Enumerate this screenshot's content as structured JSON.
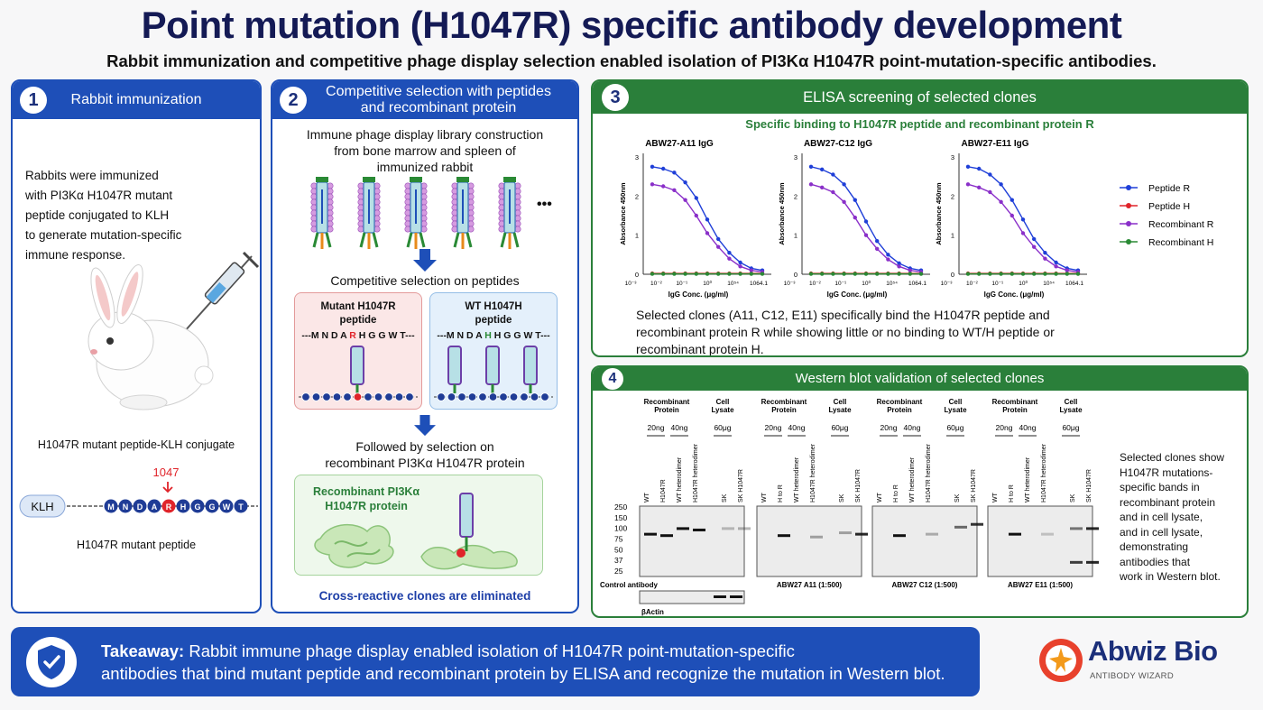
{
  "header": {
    "title": "Point mutation (H1047R) specific antibody development",
    "subtitle": "Rabbit immunization and competitive phage display selection enabled isolation of PI3Kα H1047R point-mutation-specific antibodies."
  },
  "panel1": {
    "num": "1",
    "title": "Rabbit immunization",
    "body": [
      "Rabbits were immunized",
      "with PI3Kα H1047R mutant",
      "peptide conjugated to KLH",
      "to generate mutation-specific",
      "immune response."
    ],
    "conjugate_label": "H1047R mutant peptide-KLH conjugate",
    "position_label": "1047",
    "klh": "KLH",
    "residues": [
      "M",
      "N",
      "D",
      "A",
      "R",
      "H",
      "G",
      "G",
      "W",
      "T"
    ],
    "peptide_label": "H1047R mutant peptide"
  },
  "panel2": {
    "num": "2",
    "title_line1": "Competitive selection with peptides",
    "title_line2": "and recombinant protein",
    "library_text": [
      "Immune phage display library construction",
      "from bone marrow and spleen of",
      "immunized rabbit"
    ],
    "ellipsis": "•••",
    "competitive_label": "Competitive selection on peptides",
    "mutant_title": [
      "Mutant H1047R",
      "peptide"
    ],
    "mutant_seq": {
      "pre": "---M N D A ",
      "mut": "R",
      "post": " H G G W T---"
    },
    "wt_title": [
      "WT H1047H",
      "peptide"
    ],
    "wt_seq": {
      "pre": "---M N D A ",
      "mut": "H",
      "post": " H G G W T---"
    },
    "followed_label": [
      "Followed by selection on",
      "recombinant PI3Kα H1047R protein"
    ],
    "protein_label": [
      "Recombinant PI3Kα",
      "H1047R protein"
    ],
    "eliminated": "Cross-reactive clones are eliminated"
  },
  "panel3": {
    "num": "3",
    "title": "ELISA screening of selected clones",
    "subtitle": "Specific binding to H1047R peptide and recombinant protein R",
    "ylabel": "Absorbance 450nm",
    "xlabel": "IgG Conc. (μg/ml)",
    "xticks": [
      "10⁻³",
      "10⁻²",
      "10⁻¹",
      "10⁰",
      "10⁵⁴",
      "1064.1"
    ],
    "yticks": [
      "0",
      "1",
      "2",
      "3"
    ],
    "legend": [
      {
        "label": "Peptide R",
        "color": "#1f3fd8"
      },
      {
        "label": "Peptide H",
        "color": "#e0242a"
      },
      {
        "label": "Recombinant R",
        "color": "#8a2fc9"
      },
      {
        "label": "Recombinant H",
        "color": "#2a8a35"
      }
    ],
    "summary": [
      "Selected clones (A11, C12, E11) specifically bind the H1047R peptide and",
      "recombinant protein R while showing little or no binding to WT/H peptide or",
      "recombinant protein H."
    ]
  },
  "chart_data": [
    {
      "type": "line",
      "title": "ABW27-A11 IgG",
      "xlabel": "IgG Conc. (μg/ml)",
      "ylabel": "Absorbance 450nm",
      "ylim": [
        0,
        3
      ],
      "x_index": [
        0,
        1,
        2,
        3,
        4,
        5,
        6,
        7,
        8,
        9,
        10
      ],
      "series": [
        {
          "name": "Peptide R",
          "values": [
            2.75,
            2.7,
            2.6,
            2.35,
            1.95,
            1.4,
            0.9,
            0.55,
            0.3,
            0.15,
            0.1
          ]
        },
        {
          "name": "Peptide H",
          "values": [
            0.02,
            0.02,
            0.02,
            0.02,
            0.02,
            0.02,
            0.02,
            0.02,
            0.02,
            0.02,
            0.02
          ]
        },
        {
          "name": "Recombinant R",
          "values": [
            2.3,
            2.25,
            2.15,
            1.9,
            1.5,
            1.05,
            0.7,
            0.4,
            0.2,
            0.1,
            0.06
          ]
        },
        {
          "name": "Recombinant H",
          "values": [
            0.01,
            0.01,
            0.01,
            0.01,
            0.01,
            0.01,
            0.01,
            0.01,
            0.01,
            0.01,
            0.01
          ]
        }
      ]
    },
    {
      "type": "line",
      "title": "ABW27-C12 IgG",
      "xlabel": "IgG Conc. (μg/ml)",
      "ylabel": "Absorbance 450nm",
      "ylim": [
        0,
        3
      ],
      "x_index": [
        0,
        1,
        2,
        3,
        4,
        5,
        6,
        7,
        8,
        9,
        10
      ],
      "series": [
        {
          "name": "Peptide R",
          "values": [
            2.75,
            2.68,
            2.55,
            2.3,
            1.9,
            1.35,
            0.85,
            0.5,
            0.28,
            0.15,
            0.1
          ]
        },
        {
          "name": "Peptide H",
          "values": [
            0.02,
            0.02,
            0.02,
            0.02,
            0.02,
            0.02,
            0.02,
            0.02,
            0.02,
            0.02,
            0.02
          ]
        },
        {
          "name": "Recombinant R",
          "values": [
            2.3,
            2.22,
            2.1,
            1.85,
            1.45,
            1.0,
            0.65,
            0.38,
            0.2,
            0.1,
            0.06
          ]
        },
        {
          "name": "Recombinant H",
          "values": [
            0.01,
            0.01,
            0.01,
            0.01,
            0.01,
            0.01,
            0.01,
            0.01,
            0.01,
            0.01,
            0.01
          ]
        }
      ]
    },
    {
      "type": "line",
      "title": "ABW27-E11 IgG",
      "xlabel": "IgG Conc. (μg/ml)",
      "ylabel": "Absorbance 450nm",
      "ylim": [
        0,
        3
      ],
      "x_index": [
        0,
        1,
        2,
        3,
        4,
        5,
        6,
        7,
        8,
        9,
        10
      ],
      "series": [
        {
          "name": "Peptide R",
          "values": [
            2.75,
            2.7,
            2.55,
            2.3,
            1.9,
            1.4,
            0.9,
            0.55,
            0.3,
            0.15,
            0.1
          ]
        },
        {
          "name": "Peptide H",
          "values": [
            0.02,
            0.02,
            0.02,
            0.02,
            0.02,
            0.02,
            0.02,
            0.02,
            0.02,
            0.02,
            0.02
          ]
        },
        {
          "name": "Recombinant R",
          "values": [
            2.3,
            2.22,
            2.1,
            1.85,
            1.5,
            1.05,
            0.7,
            0.4,
            0.2,
            0.1,
            0.06
          ]
        },
        {
          "name": "Recombinant H",
          "values": [
            0.01,
            0.01,
            0.01,
            0.01,
            0.01,
            0.01,
            0.01,
            0.01,
            0.01,
            0.01,
            0.01
          ]
        }
      ]
    }
  ],
  "panel4": {
    "num": "4",
    "title": "Western blot validation of selected clones",
    "recomb_label": [
      "Recombinant",
      "Protein"
    ],
    "cell_label": [
      "Cell",
      "Lysate"
    ],
    "amounts": [
      "20ng",
      "40ng",
      "60μg"
    ],
    "yticks": [
      "250",
      "150",
      "100",
      "75",
      "50",
      "37",
      "25"
    ],
    "blots": [
      {
        "lanes": [
          "WT",
          "H1047R",
          "WT heterodimer",
          "H1047R heterodimer",
          "SK",
          "SK H1047R"
        ],
        "caption": "Control antibody"
      },
      {
        "lanes": [
          "WT",
          "H to R",
          "WT heterodimer",
          "H1047R heterodimer",
          "SK",
          "SK H1047R"
        ],
        "caption": "ABW27 A11 (1:500)"
      },
      {
        "lanes": [
          "WT",
          "H to R",
          "WT heterodimer",
          "H1047R heterodimer",
          "SK",
          "SK H1047R"
        ],
        "caption": "ABW27 C12 (1:500)"
      },
      {
        "lanes": [
          "WT",
          "H to R",
          "WT heterodimer",
          "H1047R heterodimer",
          "SK",
          "SK H1047R"
        ],
        "caption": "ABW27 E11 (1:500)"
      }
    ],
    "actin_label": "βActin",
    "side_text": [
      "Selected clones show",
      "H1047R mutations-",
      "specific bands in",
      "recombinant protein",
      "and in cell lysate,",
      "and in cell lysate,",
      "demonstrating",
      "antibodies that",
      "work in Western blot."
    ]
  },
  "takeaway": {
    "lead": "Takeaway:",
    "line1": " Rabbit immune phage display enabled isolation of H1047R point-mutation-specific",
    "line2": "antibodies that bind mutant peptide and recombinant protein by ELISA and recognize the mutation in Western blot."
  },
  "logo": {
    "name": "Abwiz Bio",
    "tagline": "ANTIBODY WIZARD"
  },
  "colors": {
    "blue": "#1e4fb8",
    "green": "#2a7f3a",
    "navy": "#141a55",
    "red": "#e0242a"
  }
}
